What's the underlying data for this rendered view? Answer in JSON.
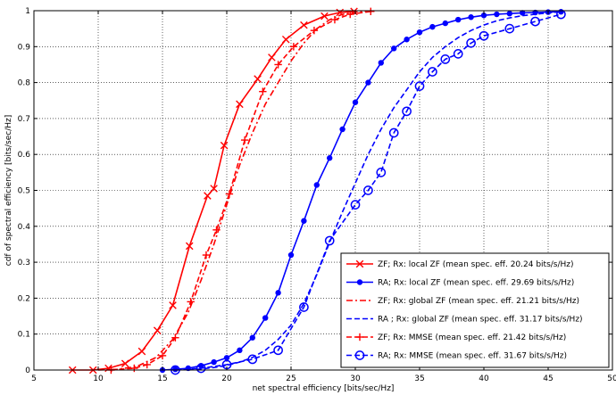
{
  "chart_data": {
    "type": "line",
    "xlabel": "net spectral efficiency [bits/sec/Hz]",
    "ylabel": "cdf of spectral efficiency [bits/sec/Hz]",
    "xlim": [
      5,
      50
    ],
    "ylim": [
      0,
      1
    ],
    "xticks": [
      "5",
      "10",
      "15",
      "20",
      "25",
      "30",
      "35",
      "40",
      "45",
      "50"
    ],
    "yticks": [
      "0",
      "0.1",
      "0.2",
      "0.3",
      "0.4",
      "0.5",
      "0.6",
      "0.7",
      "0.8",
      "0.9",
      "1"
    ],
    "grid": true,
    "legend_position": "bottom-right",
    "series": [
      {
        "name": "ZF; Rx: local ZF (mean spec. eff. 20.24 bits/s/Hz)",
        "color": "#ff0000",
        "dash": "solid",
        "marker": "x",
        "x": [
          8.0,
          9.6,
          10.8,
          12.1,
          13.4,
          14.6,
          15.8,
          17.1,
          18.5,
          19.0,
          19.8,
          21.0,
          22.4,
          23.5,
          24.6,
          26.0,
          27.6,
          28.8,
          29.9
        ],
        "y": [
          0.0,
          0.0,
          0.005,
          0.018,
          0.052,
          0.11,
          0.18,
          0.345,
          0.485,
          0.505,
          0.625,
          0.74,
          0.81,
          0.87,
          0.92,
          0.96,
          0.985,
          0.995,
          0.998
        ]
      },
      {
        "name": "RA; Rx: local ZF (mean spec. eff. 29.69 bits/s/Hz)",
        "color": "#0000ff",
        "dash": "solid",
        "marker": "dot",
        "x": [
          15.0,
          16.0,
          17.0,
          18.0,
          19.0,
          20.0,
          21.0,
          22.0,
          23.0,
          24.0,
          25.0,
          26.0,
          27.0,
          28.0,
          29.0,
          30.0,
          31.0,
          32.0,
          33.0,
          34.0,
          35.0,
          36.0,
          37.0,
          38.0,
          39.0,
          40.0,
          41.0,
          42.0,
          43.0,
          44.0,
          45.0,
          46.0
        ],
        "y": [
          0.0,
          0.002,
          0.005,
          0.012,
          0.022,
          0.034,
          0.055,
          0.09,
          0.145,
          0.215,
          0.32,
          0.415,
          0.515,
          0.59,
          0.67,
          0.745,
          0.8,
          0.855,
          0.895,
          0.92,
          0.94,
          0.955,
          0.965,
          0.975,
          0.982,
          0.987,
          0.99,
          0.992,
          0.994,
          0.995,
          0.996,
          0.997
        ]
      },
      {
        "name": "ZF; Rx: global ZF (mean spec. eff. 21.21 bits/s/Hz)",
        "color": "#ff0000",
        "dash": "dashdot",
        "marker": "none",
        "x": [
          10.0,
          11.5,
          13.0,
          14.5,
          15.8,
          17.0,
          18.0,
          19.0,
          20.0,
          21.0,
          22.0,
          23.0,
          24.0,
          25.0,
          26.0,
          27.0,
          28.0,
          29.0,
          30.0,
          31.0
        ],
        "y": [
          0.0,
          0.002,
          0.01,
          0.035,
          0.085,
          0.16,
          0.25,
          0.35,
          0.46,
          0.57,
          0.66,
          0.74,
          0.8,
          0.86,
          0.91,
          0.95,
          0.975,
          0.99,
          0.996,
          0.999
        ]
      },
      {
        "name": "RA ; Rx: global ZF (mean spec. eff. 31.17 bits/s/Hz)",
        "color": "#0000ff",
        "dash": "dash",
        "marker": "none",
        "x": [
          17.0,
          18.0,
          19.0,
          20.0,
          21.0,
          22.0,
          23.0,
          24.0,
          25.0,
          26.0,
          27.0,
          28.0,
          29.0,
          30.0,
          31.0,
          32.0,
          33.0,
          34.0,
          35.0,
          36.0,
          37.0,
          38.0,
          39.0,
          40.0,
          41.0,
          42.0,
          43.0,
          44.0,
          45.0,
          46.0
        ],
        "y": [
          0.0,
          0.003,
          0.007,
          0.013,
          0.022,
          0.035,
          0.055,
          0.085,
          0.125,
          0.185,
          0.265,
          0.355,
          0.44,
          0.52,
          0.6,
          0.67,
          0.73,
          0.78,
          0.83,
          0.87,
          0.9,
          0.925,
          0.945,
          0.96,
          0.972,
          0.98,
          0.986,
          0.99,
          0.994,
          0.997
        ]
      },
      {
        "name": "ZF; Rx: MMSE (mean spec. eff. 21.42 bits/s/Hz)",
        "color": "#ff0000",
        "dash": "dash",
        "marker": "plus",
        "x": [
          11.0,
          12.8,
          13.8,
          15.0,
          16.0,
          17.2,
          18.4,
          19.2,
          20.2,
          21.4,
          22.8,
          24.0,
          25.2,
          26.8,
          28.4,
          29.6,
          31.2
        ],
        "y": [
          0.0,
          0.005,
          0.015,
          0.04,
          0.09,
          0.19,
          0.32,
          0.39,
          0.49,
          0.64,
          0.775,
          0.85,
          0.9,
          0.945,
          0.975,
          0.99,
          0.998
        ]
      },
      {
        "name": "RA; Rx: MMSE (mean spec. eff. 31.67 bits/s/Hz)",
        "color": "#0000ff",
        "dash": "dash",
        "marker": "circle",
        "x": [
          16.0,
          18.0,
          20.0,
          22.0,
          24.0,
          26.0,
          28.0,
          30.0,
          31.0,
          32.0,
          33.0,
          34.0,
          35.0,
          36.0,
          37.0,
          38.0,
          39.0,
          40.0,
          42.0,
          44.0,
          46.0
        ],
        "y": [
          0.0,
          0.005,
          0.015,
          0.03,
          0.055,
          0.175,
          0.36,
          0.46,
          0.5,
          0.55,
          0.66,
          0.72,
          0.79,
          0.83,
          0.865,
          0.88,
          0.91,
          0.93,
          0.95,
          0.97,
          0.99
        ]
      }
    ]
  }
}
